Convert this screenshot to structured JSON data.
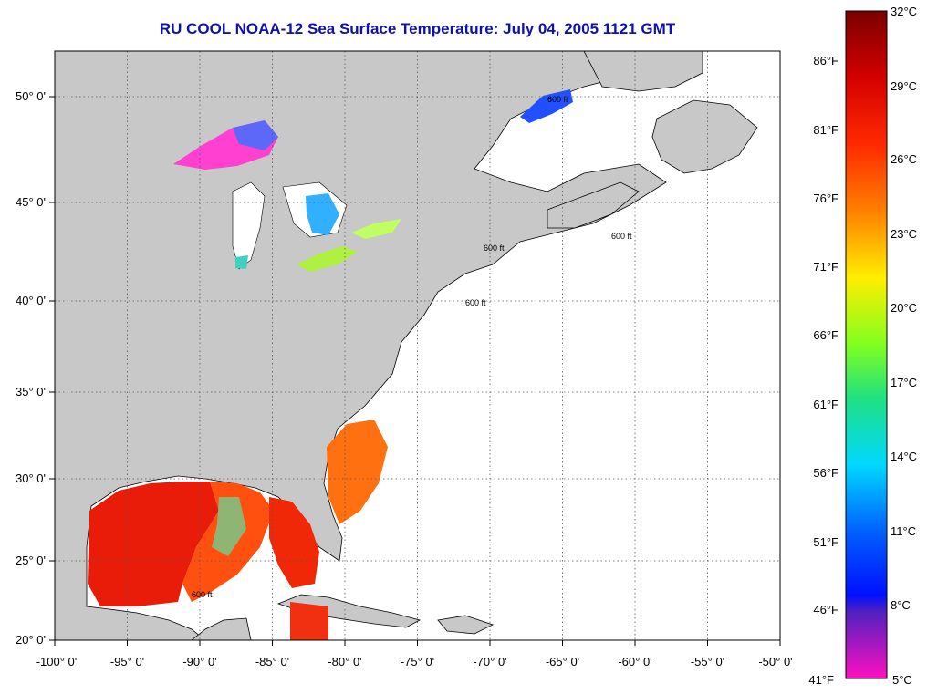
{
  "title": "RU COOL  NOAA-12  Sea Surface Temperature:  July 04, 2005 1121 GMT",
  "map": {
    "lon_range": [
      -100,
      -50
    ],
    "lat_range": [
      20,
      52.5
    ],
    "lon_ticks": [
      "-100° 0'",
      "-95° 0'",
      "-90° 0'",
      "-85° 0'",
      "-80° 0'",
      "-75° 0'",
      "-70° 0'",
      "-65° 0'",
      "-60° 0'",
      "-55° 0'",
      "-50° 0'"
    ],
    "lat_ticks": [
      "20° 0'",
      "25° 0'",
      "30° 0'",
      "35° 0'",
      "40° 0'",
      "45° 0'",
      "50° 0'"
    ],
    "contour_label": "600 ft",
    "colors": {
      "land": "#c8c8c8",
      "water": "#ffffff",
      "grid": "#555555"
    }
  },
  "colorbar": {
    "celsius_labels": [
      "32°C",
      "29°C",
      "26°C",
      "23°C",
      "20°C",
      "17°C",
      "14°C",
      "11°C",
      "8°C",
      "5°C"
    ],
    "fahrenheit_labels": [
      "86°F",
      "81°F",
      "76°F",
      "71°F",
      "66°F",
      "61°F",
      "56°F",
      "51°F",
      "46°F",
      "41°F"
    ]
  }
}
